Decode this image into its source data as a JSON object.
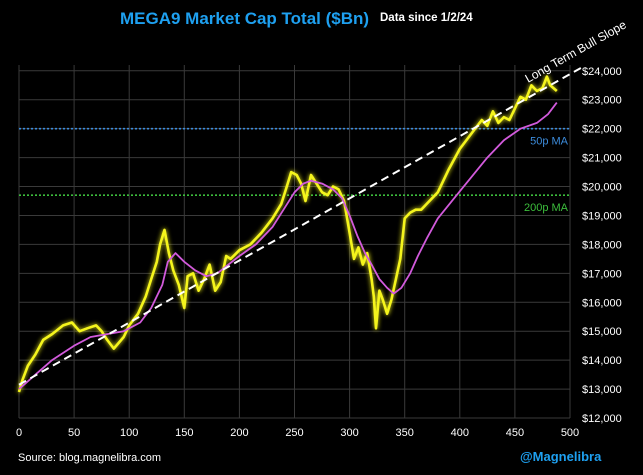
{
  "title": "MEGA9 Market Cap Total ($Bn)",
  "subtitle": "Data since 1/2/24",
  "source": "Source: blog.magnelibra.com",
  "handle": "@Magnelibra",
  "colors": {
    "background": "#000000",
    "title": "#1ea0f0",
    "price_line": "#f5f51e",
    "ma50_line": "#d25adc",
    "trend_line": "#ffffff",
    "ref_50": "#3c8cdc",
    "ref_200": "#3cbe3c",
    "grid": "#3a3a3a"
  },
  "chart_data": {
    "type": "line",
    "x_ticks": [
      0,
      50,
      100,
      150,
      200,
      250,
      300,
      350,
      400,
      450,
      500
    ],
    "y_ticks": [
      "$12,000",
      "$13,000",
      "$14,000",
      "$15,000",
      "$16,000",
      "$17,000",
      "$18,000",
      "$19,000",
      "$20,000",
      "$21,000",
      "$22,000",
      "$23,000",
      "$24,000"
    ],
    "xlim": [
      0,
      500
    ],
    "ylim": [
      12000,
      24200
    ],
    "grid": true,
    "series": [
      {
        "x": [
          0,
          3,
          8,
          15,
          22,
          30,
          40,
          48,
          55,
          62,
          70,
          75,
          80,
          86,
          95,
          100,
          108,
          115,
          120,
          125,
          128,
          132,
          136,
          140,
          145,
          150,
          153,
          158,
          163,
          168,
          173,
          178,
          183,
          188,
          192,
          200,
          210,
          220,
          230,
          238,
          243,
          247,
          252,
          256,
          260,
          265,
          270,
          275,
          280,
          285,
          290,
          295,
          300,
          304,
          308,
          312,
          316,
          320,
          322,
          324,
          327,
          330,
          334,
          338,
          342,
          346,
          350,
          355,
          360,
          365,
          370,
          380,
          390,
          400,
          410,
          420,
          425,
          430,
          435,
          440,
          445,
          450,
          455,
          460,
          465,
          470,
          475,
          479,
          482,
          485,
          488
        ],
        "y": [
          12900,
          13300,
          13800,
          14200,
          14700,
          14900,
          15200,
          15300,
          15000,
          15100,
          15200,
          15000,
          14700,
          14400,
          14800,
          15200,
          15600,
          16200,
          16800,
          17400,
          18000,
          18500,
          17700,
          17100,
          16600,
          15800,
          16900,
          17000,
          16400,
          16800,
          17300,
          16400,
          16700,
          17600,
          17500,
          17800,
          18000,
          18400,
          18900,
          19400,
          20000,
          20500,
          20400,
          20100,
          19500,
          20400,
          20100,
          19800,
          19700,
          20000,
          19900,
          19500,
          18400,
          17500,
          17900,
          17300,
          17700,
          16800,
          16200,
          15100,
          16400,
          16100,
          15600,
          16100,
          16800,
          17500,
          18900,
          19100,
          19200,
          19200,
          19400,
          19800,
          20600,
          21300,
          21800,
          22300,
          22100,
          22600,
          22200,
          22400,
          22300,
          22700,
          23100,
          23000,
          23500,
          23300,
          23400,
          23800,
          23500,
          23400,
          23300
        ]
      },
      {
        "x": [
          0,
          15,
          30,
          50,
          65,
          80,
          95,
          110,
          120,
          130,
          135,
          142,
          150,
          160,
          170,
          180,
          190,
          200,
          215,
          230,
          240,
          250,
          258,
          265,
          275,
          285,
          293,
          300,
          307,
          314,
          320,
          327,
          334,
          340,
          347,
          355,
          362,
          370,
          380,
          395,
          410,
          425,
          440,
          455,
          470,
          480,
          488
        ],
        "y": [
          13000,
          13500,
          14000,
          14500,
          14800,
          14900,
          15000,
          15300,
          15800,
          16600,
          17400,
          17700,
          17400,
          17100,
          16900,
          17000,
          17300,
          17600,
          18000,
          18600,
          19200,
          19800,
          20100,
          20200,
          20100,
          19900,
          19600,
          19000,
          18300,
          17700,
          17300,
          16800,
          16500,
          16300,
          16500,
          17000,
          17600,
          18200,
          18900,
          19600,
          20300,
          21000,
          21600,
          22000,
          22200,
          22500,
          22900
        ]
      },
      {
        "x": [
          0,
          510
        ],
        "y": [
          13150,
          24100
        ]
      }
    ],
    "annotations": [
      {
        "label": "Long Term Bull Slope",
        "type": "trend"
      },
      {
        "label": "50p MA",
        "y": 22000,
        "type": "hline"
      },
      {
        "label": "200p MA",
        "y": 19700,
        "type": "hline"
      }
    ]
  }
}
